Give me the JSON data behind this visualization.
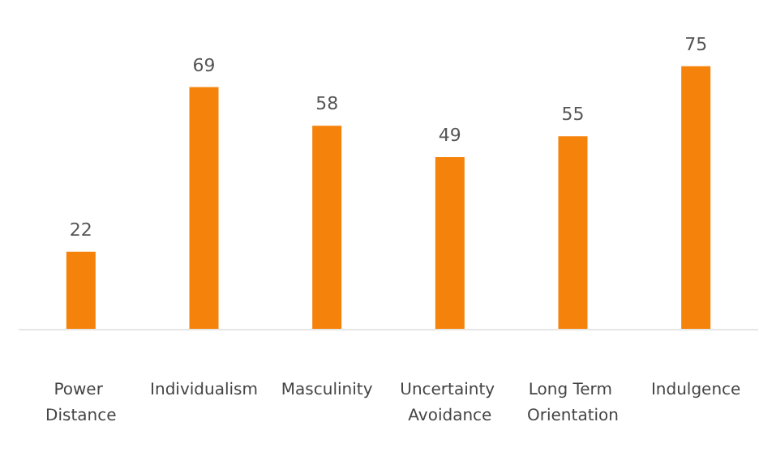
{
  "chart_data": {
    "type": "bar",
    "categories": [
      "Power Distance",
      "Individualism",
      "Masculinity",
      "Uncertainty Avoidance",
      "Long Term Orientation",
      "Indulgence"
    ],
    "values": [
      22,
      69,
      58,
      49,
      55,
      75
    ],
    "color": "#f5820a",
    "data_labels": true
  }
}
